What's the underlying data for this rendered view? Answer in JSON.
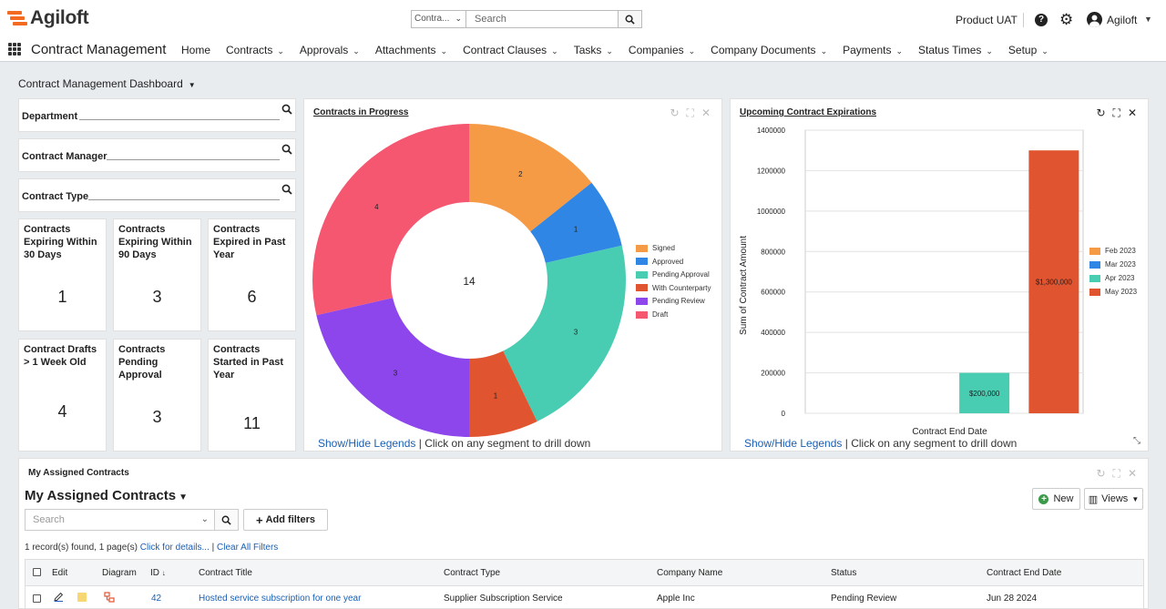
{
  "brand": {
    "name": "Agiloft",
    "logo_color": "#f26b21"
  },
  "search": {
    "scope": "Contra...",
    "placeholder": "Search"
  },
  "header": {
    "environment": "Product UAT",
    "user": "Agiloft"
  },
  "nav": {
    "app_title": "Contract Management",
    "items": [
      {
        "label": "Home",
        "has_menu": false
      },
      {
        "label": "Contracts",
        "has_menu": true
      },
      {
        "label": "Approvals",
        "has_menu": true
      },
      {
        "label": "Attachments",
        "has_menu": true
      },
      {
        "label": "Contract Clauses",
        "has_menu": true
      },
      {
        "label": "Tasks",
        "has_menu": true
      },
      {
        "label": "Companies",
        "has_menu": true
      },
      {
        "label": "Company Documents",
        "has_menu": true
      },
      {
        "label": "Payments",
        "has_menu": true
      },
      {
        "label": "Status Times",
        "has_menu": true
      },
      {
        "label": "Setup",
        "has_menu": true
      }
    ]
  },
  "dashboard": {
    "title": "Contract Management Dashboard"
  },
  "filters": [
    {
      "label": "Department"
    },
    {
      "label": "Contract Manager"
    },
    {
      "label": "Contract Type"
    }
  ],
  "kpis": [
    {
      "title": "Contracts Expiring Within 30 Days",
      "value": "1"
    },
    {
      "title": "Contracts Expiring Within 90 Days",
      "value": "3"
    },
    {
      "title": "Contracts Expired in Past Year",
      "value": "6"
    },
    {
      "title": "Contract Drafts > 1 Week Old",
      "value": "4"
    },
    {
      "title": "Contracts Pending Approval",
      "value": "3"
    },
    {
      "title": "Contracts Started in Past Year",
      "value": "11"
    }
  ],
  "progress_panel": {
    "title": "Contracts in Progress",
    "footer_link": "Show/Hide Legends",
    "footer_text": " | Click on any segment to drill down"
  },
  "expirations_panel": {
    "title": "Upcoming Contract Expirations",
    "footer_link": "Show/Hide Legends",
    "footer_text": " | Click on any segment to drill down"
  },
  "chart_data": [
    {
      "type": "pie",
      "title": "Contracts in Progress",
      "donut": true,
      "center_label": "14",
      "categories": [
        "Signed",
        "Approved",
        "Pending Approval",
        "With Counterparty",
        "Pending Review",
        "Draft"
      ],
      "values": [
        2,
        1,
        3,
        1,
        3,
        4
      ],
      "colors": [
        "#f59a45",
        "#2f86e4",
        "#48cdb2",
        "#e0542f",
        "#8c46eb",
        "#f55670"
      ],
      "legend_position": "right"
    },
    {
      "type": "bar",
      "title": "Upcoming Contract Expirations",
      "xlabel": "Contract End Date",
      "ylabel": "Sum of Contract Amount",
      "ylim": [
        0,
        1400000
      ],
      "yticks": [
        0,
        200000,
        400000,
        600000,
        800000,
        1000000,
        1200000,
        1400000
      ],
      "grid": true,
      "legend_position": "right",
      "series": [
        {
          "name": "Feb 2023",
          "color": "#f59a45",
          "value": 0,
          "label": ""
        },
        {
          "name": "Mar 2023",
          "color": "#2f86e4",
          "value": 0,
          "label": ""
        },
        {
          "name": "Apr 2023",
          "color": "#48cdb2",
          "value": 200000,
          "label": "$200,000"
        },
        {
          "name": "May 2023",
          "color": "#e0542f",
          "value": 1300000,
          "label": "$1,300,000"
        }
      ]
    }
  ],
  "assigned": {
    "panel_label": "My Assigned Contracts",
    "title": "My Assigned Contracts",
    "search_placeholder": "Search",
    "add_filters_label": "Add filters",
    "new_label": "New",
    "views_label": "Views",
    "records_text": "1 record(s) found, 1 page(s) ",
    "details_link": "Click for details...",
    "clear_link": "Clear All Filters",
    "columns": [
      "Edit",
      "Diagram",
      "ID",
      "Contract Title",
      "Contract Type",
      "Company Name",
      "Status",
      "Contract End Date"
    ],
    "rows": [
      {
        "id": "42",
        "title": "Hosted service subscription for one year",
        "type": "Supplier Subscription Service",
        "company": "Apple Inc",
        "status": "Pending Review",
        "end_date": "Jun 28 2024"
      }
    ]
  }
}
